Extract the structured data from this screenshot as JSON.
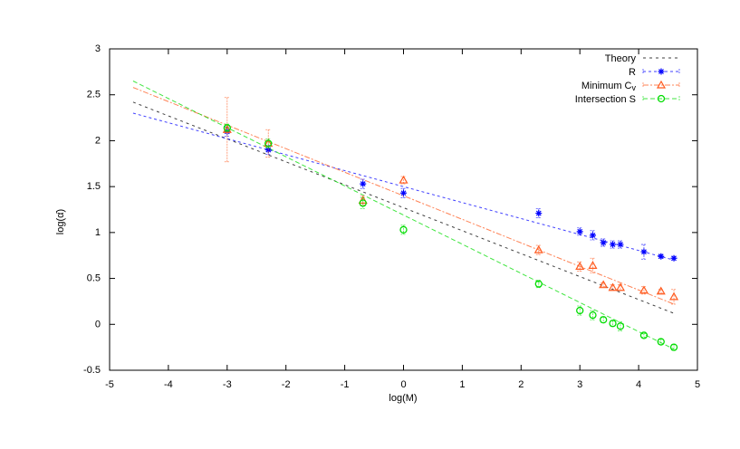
{
  "chart_data": {
    "type": "scatter",
    "xlabel": "log(M)",
    "ylabel": "log(α̂)",
    "xlim": [
      -5,
      5
    ],
    "ylim": [
      -0.5,
      3
    ],
    "xticks": [
      -5,
      -4,
      -3,
      -2,
      -1,
      0,
      1,
      2,
      3,
      4,
      5
    ],
    "yticks": [
      -0.5,
      0,
      0.5,
      1,
      1.5,
      2,
      2.5,
      3
    ],
    "grid": false,
    "legend_position": "top-right",
    "lines": [
      {
        "name": "Theory",
        "color": "#000000",
        "dash": "3,4",
        "x": [
          -4.6,
          4.6
        ],
        "y": [
          2.42,
          0.12
        ]
      },
      {
        "name": "R",
        "color": "#0000ff",
        "dash": "3,3",
        "x": [
          -4.6,
          4.6
        ],
        "y": [
          2.3,
          0.7
        ]
      },
      {
        "name": "Minimum C_v",
        "color": "#ff5a1e",
        "dash": "6,2,2,2",
        "x": [
          -4.6,
          4.6
        ],
        "y": [
          2.58,
          0.22
        ]
      },
      {
        "name": "Intersection S",
        "color": "#00dd00",
        "dash": "5,3",
        "x": [
          -4.6,
          4.6
        ],
        "y": [
          2.65,
          -0.27
        ]
      }
    ],
    "series": [
      {
        "name": "R",
        "marker": "star",
        "color": "#0000ff",
        "x": [
          -3,
          -2.3,
          -0.69,
          0,
          2.3,
          3,
          3.22,
          3.4,
          3.56,
          3.69,
          4.09,
          4.38,
          4.6
        ],
        "y": [
          2.1,
          1.9,
          1.53,
          1.43,
          1.21,
          1.01,
          0.97,
          0.89,
          0.87,
          0.87,
          0.79,
          0.74,
          0.72
        ],
        "err": [
          0.05,
          0.05,
          0.05,
          0.05,
          0.05,
          0.04,
          0.05,
          0.04,
          0.04,
          0.04,
          0.08,
          0.02,
          0.02
        ]
      },
      {
        "name": "Minimum C_v",
        "marker": "triangle",
        "color": "#ff5a1e",
        "x": [
          -3,
          -2.3,
          -0.69,
          0,
          2.3,
          3,
          3.22,
          3.4,
          3.56,
          3.69,
          4.09,
          4.38,
          4.6
        ],
        "y": [
          2.12,
          1.97,
          1.35,
          1.57,
          0.81,
          0.63,
          0.64,
          0.43,
          0.4,
          0.4,
          0.37,
          0.36,
          0.3
        ],
        "err": [
          0.35,
          0.15,
          0.05,
          0.04,
          0.05,
          0.05,
          0.08,
          0.02,
          0.03,
          0.03,
          0.04,
          0.02,
          0.08
        ]
      },
      {
        "name": "Intersection S",
        "marker": "circle",
        "color": "#00dd00",
        "x": [
          -3,
          -2.3,
          -0.69,
          0,
          2.3,
          3,
          3.22,
          3.4,
          3.56,
          3.69,
          4.09,
          4.38,
          4.6
        ],
        "y": [
          2.14,
          1.97,
          1.32,
          1.03,
          0.44,
          0.15,
          0.1,
          0.05,
          0.01,
          -0.02,
          -0.12,
          -0.19,
          -0.25
        ],
        "err": [
          0.04,
          0.05,
          0.06,
          0.05,
          0.04,
          0.05,
          0.05,
          0.03,
          0.03,
          0.05,
          0.02,
          0.03,
          0.03
        ]
      }
    ],
    "legend": [
      "Theory",
      "R",
      "Minimum C",
      "Intersection S"
    ],
    "legend_subscript": "v"
  }
}
